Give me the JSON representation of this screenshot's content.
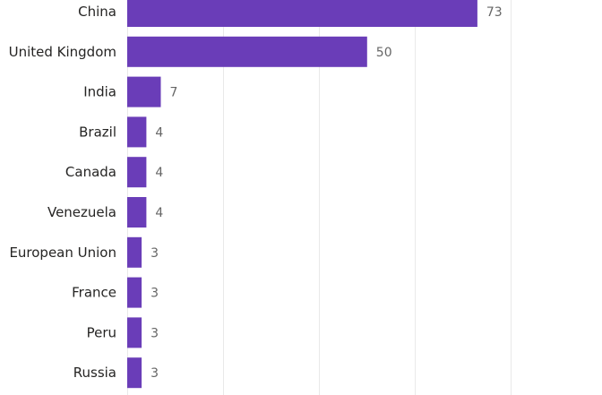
{
  "chart_data": {
    "type": "bar",
    "orientation": "horizontal",
    "categories": [
      "China",
      "United Kingdom",
      "India",
      "Brazil",
      "Canada",
      "Venezuela",
      "European Union",
      "France",
      "Peru",
      "Russia"
    ],
    "values": [
      73,
      50,
      7,
      4,
      4,
      4,
      3,
      3,
      3,
      3
    ],
    "data_labels": [
      "73",
      "50",
      "7",
      "4",
      "4",
      "4",
      "3",
      "3",
      "3",
      "3"
    ],
    "xlim": [
      0,
      80
    ],
    "grid": true,
    "bar_color": "#6a3db8",
    "label_color": "#252423",
    "value_label_color": "#666666",
    "grid_color": "#e9e9e9"
  }
}
